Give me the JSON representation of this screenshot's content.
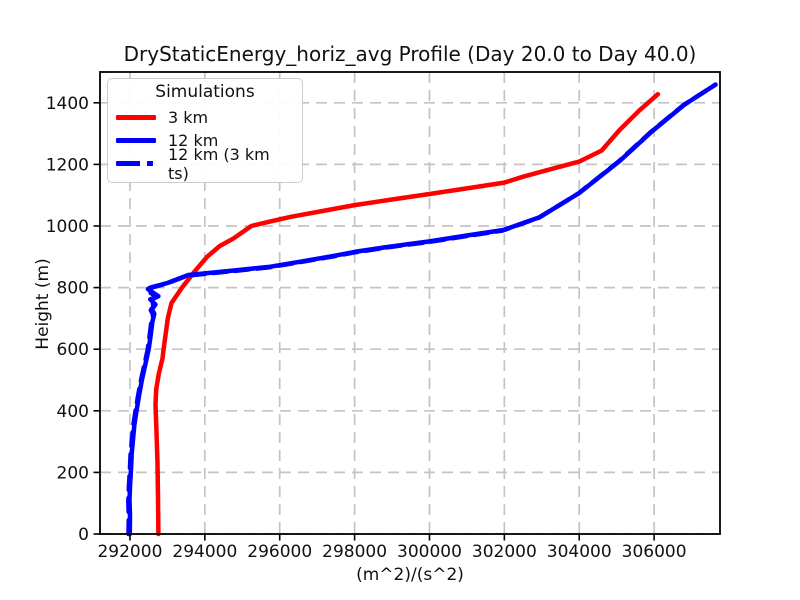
{
  "chart_data": {
    "type": "line",
    "title": "DryStaticEnergy_horiz_avg Profile (Day 20.0 to Day 40.0)",
    "xlabel": "(m^2)/(s^2)",
    "ylabel": "Height (m)",
    "xlim": [
      291200,
      307760
    ],
    "ylim": [
      0,
      1500
    ],
    "xticks": [
      292000,
      294000,
      296000,
      298000,
      300000,
      302000,
      304000,
      306000
    ],
    "yticks": [
      0,
      200,
      400,
      600,
      800,
      1000,
      1200,
      1400
    ],
    "grid": true,
    "grid_color": "#c4c4c4",
    "spine_color": "#000000",
    "legend": {
      "title": "Simulations",
      "position": "upper-left"
    },
    "series": [
      {
        "name": "3 km",
        "color": "#ff0000",
        "style": "solid",
        "width": 4.5,
        "points": [
          [
            292760,
            0
          ],
          [
            292750,
            120
          ],
          [
            292737,
            230
          ],
          [
            292710,
            330
          ],
          [
            292683,
            420
          ],
          [
            292700,
            470
          ],
          [
            292770,
            520
          ],
          [
            292870,
            570
          ],
          [
            292900,
            600
          ],
          [
            293010,
            700
          ],
          [
            293110,
            750
          ],
          [
            293390,
            800
          ],
          [
            293710,
            850
          ],
          [
            294060,
            900
          ],
          [
            294400,
            935
          ],
          [
            294770,
            960
          ],
          [
            295240,
            1000
          ],
          [
            295750,
            1015
          ],
          [
            296300,
            1030
          ],
          [
            297200,
            1050
          ],
          [
            298000,
            1068
          ],
          [
            299000,
            1086
          ],
          [
            300000,
            1104
          ],
          [
            301000,
            1122
          ],
          [
            302000,
            1141
          ],
          [
            302500,
            1160
          ],
          [
            303200,
            1183
          ],
          [
            304000,
            1209
          ],
          [
            304600,
            1245
          ],
          [
            305080,
            1312
          ],
          [
            305620,
            1377
          ],
          [
            306100,
            1428
          ]
        ]
      },
      {
        "name": "12 km",
        "color": "#0000ff",
        "style": "solid",
        "width": 4.5,
        "points": [
          [
            291995,
            0
          ],
          [
            292000,
            60
          ],
          [
            291988,
            110
          ],
          [
            292005,
            160
          ],
          [
            292030,
            215
          ],
          [
            292048,
            260
          ],
          [
            292085,
            310
          ],
          [
            292120,
            355
          ],
          [
            292175,
            400
          ],
          [
            292245,
            450
          ],
          [
            292320,
            500
          ],
          [
            292410,
            550
          ],
          [
            292500,
            600
          ],
          [
            292555,
            645
          ],
          [
            292600,
            690
          ],
          [
            292650,
            715
          ],
          [
            292590,
            730
          ],
          [
            292680,
            745
          ],
          [
            292540,
            762
          ],
          [
            292760,
            772
          ],
          [
            292480,
            795
          ],
          [
            292550,
            800
          ],
          [
            293000,
            815
          ],
          [
            293560,
            841
          ],
          [
            294810,
            856
          ],
          [
            295750,
            868
          ],
          [
            296550,
            884
          ],
          [
            297400,
            902
          ],
          [
            298000,
            916
          ],
          [
            299000,
            934
          ],
          [
            300000,
            950
          ],
          [
            301000,
            969
          ],
          [
            301975,
            987
          ],
          [
            302950,
            1029
          ],
          [
            304000,
            1107
          ],
          [
            305080,
            1211
          ],
          [
            305930,
            1306
          ],
          [
            306810,
            1394
          ],
          [
            307640,
            1459
          ]
        ]
      },
      {
        "name": "12 km (3 km ts)",
        "color": "#0000ff",
        "style": "dashed",
        "width": 4.5,
        "points": [
          [
            291960,
            0
          ],
          [
            291968,
            55
          ],
          [
            291955,
            105
          ],
          [
            291972,
            155
          ],
          [
            291998,
            210
          ],
          [
            292015,
            255
          ],
          [
            292052,
            305
          ],
          [
            292088,
            350
          ],
          [
            292142,
            395
          ],
          [
            292212,
            445
          ],
          [
            292288,
            495
          ],
          [
            292378,
            545
          ],
          [
            292468,
            595
          ],
          [
            292522,
            640
          ],
          [
            292568,
            685
          ],
          [
            292618,
            712
          ],
          [
            292558,
            727
          ],
          [
            292648,
            742
          ],
          [
            292508,
            758
          ],
          [
            292728,
            770
          ],
          [
            292450,
            790
          ],
          [
            292520,
            798
          ],
          [
            292970,
            813
          ],
          [
            293530,
            839
          ],
          [
            294780,
            854
          ],
          [
            295720,
            866
          ],
          [
            296520,
            882
          ],
          [
            297370,
            900
          ],
          [
            297970,
            914
          ],
          [
            298970,
            932
          ],
          [
            299970,
            948
          ],
          [
            300970,
            967
          ],
          [
            301945,
            985
          ],
          [
            302920,
            1027
          ],
          [
            303970,
            1105
          ],
          [
            305050,
            1209
          ],
          [
            305900,
            1304
          ],
          [
            306780,
            1392
          ],
          [
            307640,
            1459
          ]
        ]
      }
    ]
  }
}
